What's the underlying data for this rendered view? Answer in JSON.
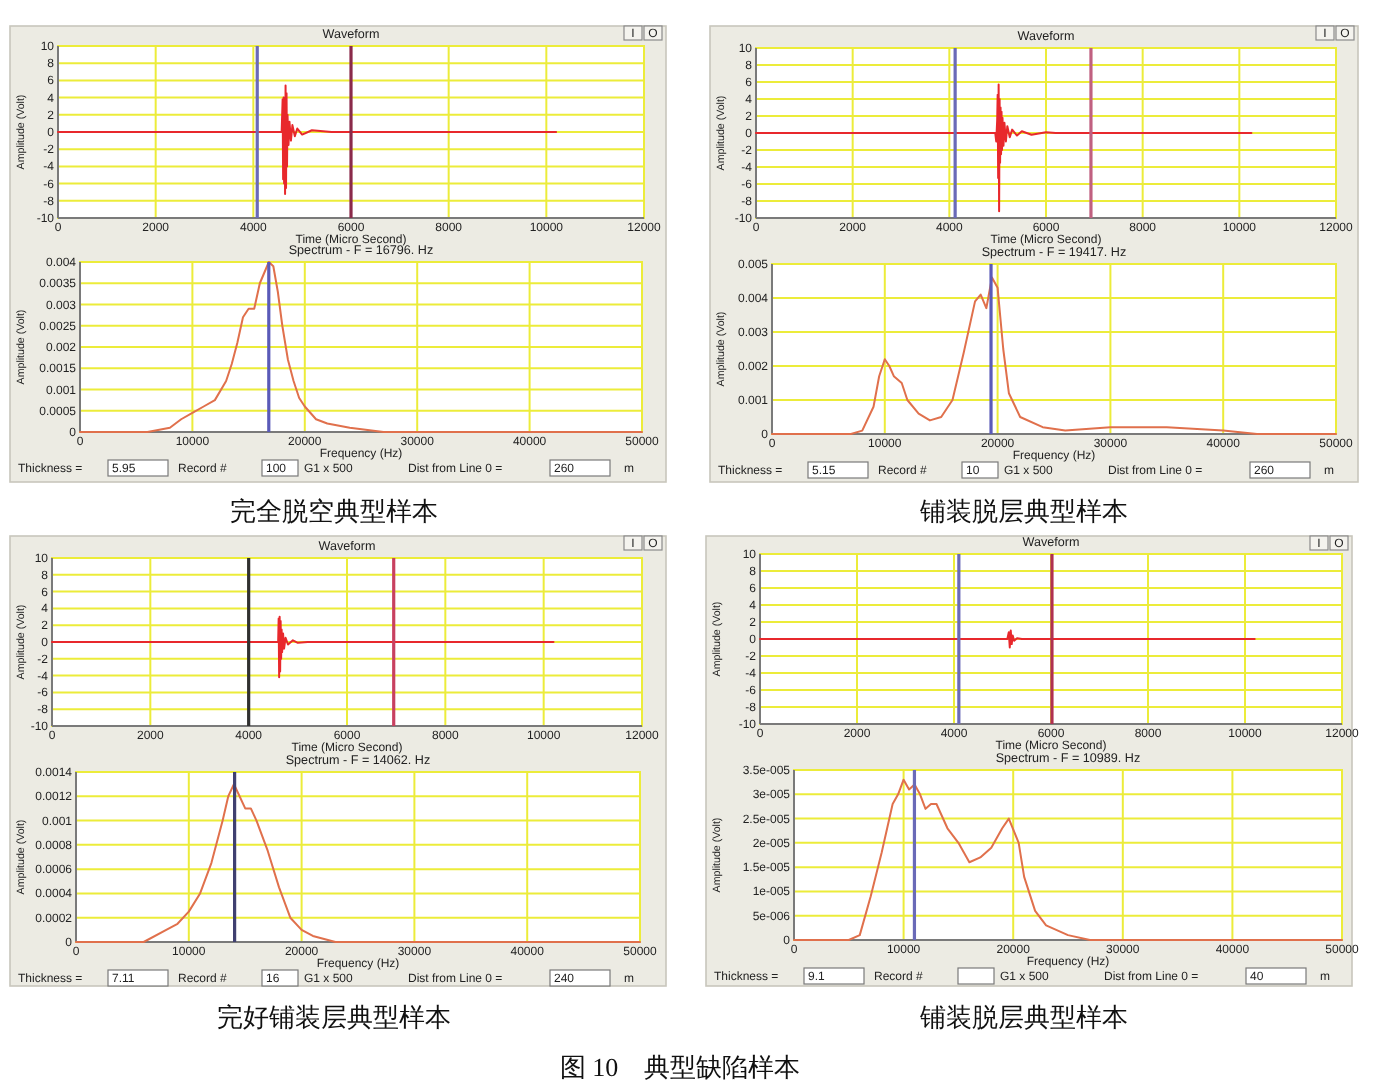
{
  "chart_data": [
    {
      "type": "line",
      "title": "Waveform",
      "xlabel": "Time (Micro Second)",
      "ylabel": "Amplitude (Volt)",
      "x": [
        0,
        4580,
        4600,
        4610,
        4620,
        4630,
        4640,
        4650,
        4660,
        4670,
        4680,
        4690,
        4700,
        4720,
        4740,
        4770,
        4800,
        4850,
        4900,
        5000,
        5200,
        5600,
        10200
      ],
      "series": [
        {
          "color": "#e8282c",
          "values": [
            0,
            0,
            3.8,
            -5.5,
            4,
            -6,
            3,
            -7.2,
            5.4,
            -6.5,
            4.5,
            -4,
            2,
            -1.5,
            1.2,
            -1,
            0.8,
            -0.5,
            0.4,
            -0.3,
            0.2,
            0,
            0
          ]
        }
      ],
      "xlim": [
        0,
        12000
      ],
      "xticks": [
        0,
        2000,
        4000,
        6000,
        8000,
        10000,
        12000
      ],
      "ylim": [
        -10,
        10
      ],
      "yticks": [
        -10,
        -8,
        -6,
        -4,
        -2,
        0,
        2,
        4,
        6,
        8,
        10
      ],
      "grid": true,
      "ref_lines": [
        {
          "axis": "x",
          "value": 4080,
          "color": "#6a6ab8"
        },
        {
          "axis": "x",
          "value": 6000,
          "color": "#8a2a4a"
        }
      ],
      "annotations": [
        "I",
        "O"
      ]
    },
    {
      "type": "line",
      "title": "Spectrum - F = 16796. Hz",
      "xlabel": "Frequency (Hz)",
      "ylabel": "Amplitude (Volt)",
      "x": [
        0,
        6000,
        8000,
        9000,
        10000,
        11000,
        12000,
        13000,
        13500,
        14000,
        14500,
        15000,
        15500,
        16000,
        16800,
        17200,
        17600,
        18000,
        18500,
        19000,
        19500,
        20000,
        21000,
        22000,
        24000,
        27000,
        50000
      ],
      "series": [
        {
          "color": "#e0704c",
          "values": [
            0,
            0,
            0.0001,
            0.0003,
            0.00045,
            0.0006,
            0.00075,
            0.0012,
            0.0016,
            0.0021,
            0.0027,
            0.0029,
            0.0029,
            0.0035,
            0.004,
            0.0039,
            0.0033,
            0.0025,
            0.0017,
            0.0012,
            0.0008,
            0.0006,
            0.0003,
            0.0002,
            0.0001,
            0,
            0
          ]
        }
      ],
      "xlim": [
        0,
        50000
      ],
      "xticks": [
        0,
        10000,
        20000,
        30000,
        40000,
        50000
      ],
      "ylim": [
        0,
        0.004
      ],
      "yticks": [
        0,
        0.0005,
        0.001,
        0.0015,
        0.002,
        0.0025,
        0.003,
        0.0035,
        0.004
      ],
      "grid": true,
      "ref_lines": [
        {
          "axis": "x",
          "value": 16796,
          "color": "#5a5ab8"
        }
      ],
      "annotations": [
        "Thickness =",
        "5.95",
        "Record #",
        "100",
        "G1 x 500",
        "Dist from Line 0 =",
        "260",
        "m",
        "完全脱空典型样本"
      ]
    },
    {
      "type": "line",
      "title": "Waveform",
      "xlabel": "Time (Micro Second)",
      "ylabel": "Amplitude (Volt)",
      "x": [
        0,
        4950,
        4970,
        4990,
        5000,
        5010,
        5020,
        5030,
        5040,
        5050,
        5060,
        5070,
        5080,
        5090,
        5100,
        5120,
        5140,
        5170,
        5200,
        5250,
        5300,
        5400,
        5500,
        5700,
        6000,
        6200,
        10250
      ],
      "series": [
        {
          "color": "#e8282c",
          "values": [
            0,
            0,
            -1,
            1.5,
            4.5,
            -5.3,
            5.7,
            -9.2,
            4,
            -3.5,
            3,
            -2.5,
            2.5,
            -2,
            1.8,
            -1.5,
            1.2,
            -1,
            0.8,
            -0.5,
            0.4,
            -0.3,
            0.2,
            -0.2,
            0.1,
            0,
            0
          ]
        }
      ],
      "xlim": [
        0,
        12000
      ],
      "xticks": [
        0,
        2000,
        4000,
        6000,
        8000,
        10000,
        12000
      ],
      "ylim": [
        -10,
        10
      ],
      "yticks": [
        -10,
        -8,
        -6,
        -4,
        -2,
        0,
        2,
        4,
        6,
        8,
        10
      ],
      "grid": true,
      "ref_lines": [
        {
          "axis": "x",
          "value": 4120,
          "color": "#6a6ab8"
        },
        {
          "axis": "x",
          "value": 6930,
          "color": "#c06080"
        }
      ],
      "annotations": [
        "I",
        "O"
      ]
    },
    {
      "type": "line",
      "title": "Spectrum - F = 19417. Hz",
      "xlabel": "Frequency (Hz)",
      "ylabel": "Amplitude (Volt)",
      "x": [
        0,
        7000,
        8000,
        9000,
        9500,
        10000,
        10400,
        10800,
        11500,
        12000,
        13000,
        14000,
        15000,
        16000,
        17000,
        18000,
        18500,
        19000,
        19500,
        20000,
        20500,
        21000,
        22000,
        24000,
        26000,
        30000,
        35000,
        40000,
        43000,
        50000
      ],
      "series": [
        {
          "color": "#e0704c",
          "values": [
            0,
            0,
            0.0001,
            0.0008,
            0.0017,
            0.0022,
            0.002,
            0.0017,
            0.0015,
            0.001,
            0.0006,
            0.0004,
            0.0005,
            0.001,
            0.0024,
            0.0039,
            0.0041,
            0.0037,
            0.0046,
            0.0043,
            0.0025,
            0.0012,
            0.0005,
            0.0002,
            0.0001,
            0.0002,
            0.0002,
            0.0001,
            0,
            0
          ]
        }
      ],
      "xlim": [
        0,
        50000
      ],
      "xticks": [
        0,
        10000,
        20000,
        30000,
        40000,
        50000
      ],
      "ylim": [
        0,
        0.005
      ],
      "yticks": [
        0,
        0.001,
        0.002,
        0.003,
        0.004,
        0.005
      ],
      "grid": true,
      "ref_lines": [
        {
          "axis": "x",
          "value": 19417,
          "color": "#5a5ab8"
        }
      ],
      "annotations": [
        "Thickness =",
        "5.15",
        "Record #",
        "10",
        "G1 x 500",
        "Dist from Line 0 =",
        "260",
        "m",
        "铺装脱层典型样本"
      ]
    },
    {
      "type": "line",
      "title": "Waveform",
      "xlabel": "Time (Micro Second)",
      "ylabel": "Amplitude (Volt)",
      "x": [
        0,
        4600,
        4610,
        4620,
        4630,
        4640,
        4650,
        4660,
        4670,
        4680,
        4700,
        4720,
        4750,
        4800,
        4900,
        5000,
        5200,
        10200
      ],
      "series": [
        {
          "color": "#e8282c",
          "values": [
            0,
            0,
            2.8,
            -4.2,
            3,
            -3.5,
            2.5,
            -2,
            1.5,
            -1.2,
            1,
            -0.8,
            0.5,
            -0.3,
            0.2,
            -0.1,
            0,
            0
          ]
        }
      ],
      "xlim": [
        0,
        12000
      ],
      "xticks": [
        0,
        2000,
        4000,
        6000,
        8000,
        10000,
        12000
      ],
      "ylim": [
        -10,
        10
      ],
      "yticks": [
        -10,
        -8,
        -6,
        -4,
        -2,
        0,
        2,
        4,
        6,
        8,
        10
      ],
      "grid": true,
      "ref_lines": [
        {
          "axis": "x",
          "value": 4000,
          "color": "#303030"
        },
        {
          "axis": "x",
          "value": 6950,
          "color": "#c84060"
        }
      ],
      "annotations": [
        "I",
        "O"
      ]
    },
    {
      "type": "line",
      "title": "Spectrum - F = 14062. Hz",
      "xlabel": "Frequency (Hz)",
      "ylabel": "Amplitude (Volt)",
      "x": [
        0,
        6000,
        8000,
        9000,
        10000,
        11000,
        12000,
        13000,
        13500,
        14000,
        14500,
        15000,
        15500,
        16000,
        17000,
        18000,
        19000,
        20000,
        21000,
        23000,
        50000
      ],
      "series": [
        {
          "color": "#e0704c",
          "values": [
            0,
            0,
            0.0001,
            0.00015,
            0.00025,
            0.0004,
            0.00065,
            0.001,
            0.0012,
            0.0013,
            0.0012,
            0.0011,
            0.0011,
            0.001,
            0.00075,
            0.00045,
            0.0002,
            0.0001,
            5e-05,
            0,
            0
          ]
        }
      ],
      "xlim": [
        0,
        50000
      ],
      "xticks": [
        0,
        10000,
        20000,
        30000,
        40000,
        50000
      ],
      "ylim": [
        0,
        0.0014
      ],
      "yticks": [
        0,
        0.0002,
        0.0004,
        0.0006,
        0.0008,
        0.001,
        0.0012,
        0.0014
      ],
      "grid": true,
      "ref_lines": [
        {
          "axis": "x",
          "value": 14062,
          "color": "#404070"
        }
      ],
      "annotations": [
        "Thickness =",
        "7.11",
        "Record #",
        "16",
        "G1 x 500",
        "Dist from Line 0 =",
        "240",
        "m",
        "完好铺装层典型样本"
      ]
    },
    {
      "type": "line",
      "title": "Waveform",
      "xlabel": "Time (Micro Second)",
      "ylabel": "Amplitude (Volt)",
      "x": [
        0,
        5100,
        5130,
        5150,
        5170,
        5190,
        5210,
        5240,
        5300,
        5400,
        10200
      ],
      "series": [
        {
          "color": "#e8282c",
          "values": [
            0,
            0,
            0.8,
            -1,
            1,
            -0.6,
            0.4,
            -0.2,
            0.1,
            0,
            0
          ]
        }
      ],
      "xlim": [
        0,
        12000
      ],
      "xticks": [
        0,
        2000,
        4000,
        6000,
        8000,
        10000,
        12000
      ],
      "ylim": [
        -10,
        10
      ],
      "yticks": [
        -10,
        -8,
        -6,
        -4,
        -2,
        0,
        2,
        4,
        6,
        8,
        10
      ],
      "grid": true,
      "ref_lines": [
        {
          "axis": "x",
          "value": 4100,
          "color": "#6a6ab8"
        },
        {
          "axis": "x",
          "value": 6020,
          "color": "#b03050"
        }
      ],
      "annotations": [
        "I",
        "O"
      ]
    },
    {
      "type": "line",
      "title": "Spectrum - F = 10989. Hz",
      "xlabel": "Frequency (Hz)",
      "ylabel": "Amplitude (Volt)",
      "x": [
        0,
        5000,
        6000,
        7000,
        8000,
        9000,
        9500,
        10000,
        10500,
        11000,
        11500,
        12000,
        12500,
        13000,
        14000,
        15000,
        15500,
        16000,
        17000,
        18000,
        19000,
        19600,
        20500,
        21000,
        22000,
        23000,
        25000,
        27000,
        50000
      ],
      "series": [
        {
          "color": "#e0704c",
          "values": [
            0,
            0,
            1e-06,
            9e-06,
            1.8e-05,
            2.8e-05,
            3e-05,
            3.3e-05,
            3.1e-05,
            3.2e-05,
            3e-05,
            2.7e-05,
            2.8e-05,
            2.8e-05,
            2.3e-05,
            2e-05,
            1.8e-05,
            1.6e-05,
            1.7e-05,
            1.9e-05,
            2.3e-05,
            2.5e-05,
            2e-05,
            1.3e-05,
            6e-06,
            3e-06,
            1e-06,
            0,
            0
          ]
        }
      ],
      "xlim": [
        0,
        50000
      ],
      "xticks": [
        0,
        10000,
        20000,
        30000,
        40000,
        50000
      ],
      "ylim": [
        0,
        3.5e-05
      ],
      "yticks": [
        0,
        {
          "value": 5e-06,
          "label": "5e-006"
        },
        {
          "value": 1e-05,
          "label": "1e-005"
        },
        {
          "value": 1.5e-05,
          "label": "1.5e-005"
        },
        {
          "value": 2e-05,
          "label": "2e-005"
        },
        {
          "value": 2.5e-05,
          "label": "2.5e-005"
        },
        {
          "value": 3e-05,
          "label": "3e-005"
        },
        {
          "value": 3.5e-05,
          "label": "3.5e-005"
        }
      ],
      "grid": true,
      "ref_lines": [
        {
          "axis": "x",
          "value": 10989,
          "color": "#6a6ab8"
        }
      ],
      "annotations": [
        "Thickness =",
        "9.1",
        "Record #",
        "G1 x 500",
        "Dist from Line 0 =",
        "40",
        "m",
        "铺装脱层典型样本",
        "图 10　典型缺陷样本"
      ]
    }
  ]
}
